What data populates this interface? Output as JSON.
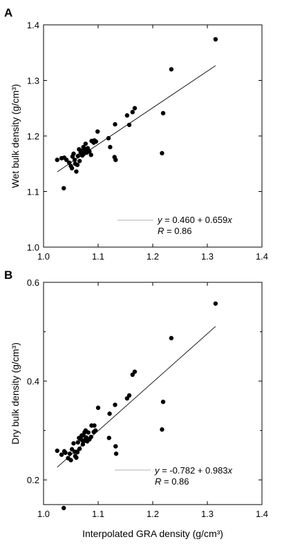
{
  "chart_data": [
    {
      "panel": "A",
      "type": "scatter",
      "xlabel": "",
      "ylabel": "Wet bulk density (g/cm³)",
      "xlim": [
        1.0,
        1.4
      ],
      "ylim": [
        1.0,
        1.4
      ],
      "xticks": [
        "1.0",
        "1.1",
        "1.2",
        "1.3",
        "1.4"
      ],
      "yticks": [
        "1.0",
        "1.1",
        "1.2",
        "1.3",
        "1.4"
      ],
      "xtick_values": [
        1.0,
        1.1,
        1.2,
        1.3,
        1.4
      ],
      "ytick_values": [
        1.0,
        1.1,
        1.2,
        1.3,
        1.4
      ],
      "equation": {
        "prefix": "y",
        "body": " = 0.460 + 0.659",
        "var": "x"
      },
      "r_text": {
        "var": "R",
        "body": " = 0.86"
      },
      "fit": {
        "intercept": 0.46,
        "slope": 0.659,
        "x_range": [
          1.025,
          1.315
        ]
      },
      "points": [
        [
          1.025,
          1.157
        ],
        [
          1.033,
          1.16
        ],
        [
          1.038,
          1.161
        ],
        [
          1.042,
          1.157
        ],
        [
          1.047,
          1.152
        ],
        [
          1.05,
          1.146
        ],
        [
          1.052,
          1.142
        ],
        [
          1.053,
          1.163
        ],
        [
          1.055,
          1.168
        ],
        [
          1.057,
          1.157
        ],
        [
          1.058,
          1.15
        ],
        [
          1.06,
          1.136
        ],
        [
          1.062,
          1.148
        ],
        [
          1.063,
          1.164
        ],
        [
          1.065,
          1.176
        ],
        [
          1.066,
          1.155
        ],
        [
          1.068,
          1.17
        ],
        [
          1.07,
          1.172
        ],
        [
          1.071,
          1.165
        ],
        [
          1.072,
          1.174
        ],
        [
          1.073,
          1.18
        ],
        [
          1.074,
          1.168
        ],
        [
          1.075,
          1.177
        ],
        [
          1.077,
          1.186
        ],
        [
          1.078,
          1.174
        ],
        [
          1.079,
          1.17
        ],
        [
          1.081,
          1.178
        ],
        [
          1.082,
          1.174
        ],
        [
          1.084,
          1.172
        ],
        [
          1.087,
          1.166
        ],
        [
          1.088,
          1.191
        ],
        [
          1.092,
          1.188
        ],
        [
          1.093,
          1.192
        ],
        [
          1.096,
          1.19
        ],
        [
          1.099,
          1.208
        ],
        [
          1.119,
          1.196
        ],
        [
          1.122,
          1.18
        ],
        [
          1.13,
          1.162
        ],
        [
          1.131,
          1.221
        ],
        [
          1.132,
          1.157
        ],
        [
          1.153,
          1.237
        ],
        [
          1.157,
          1.22
        ],
        [
          1.163,
          1.243
        ],
        [
          1.167,
          1.25
        ],
        [
          1.217,
          1.169
        ],
        [
          1.219,
          1.241
        ],
        [
          1.234,
          1.32
        ],
        [
          1.315,
          1.374
        ],
        [
          1.037,
          1.106
        ]
      ]
    },
    {
      "panel": "B",
      "type": "scatter",
      "xlabel": "Interpolated GRA density (g/cm³)",
      "ylabel": "Dry bulk density (g/cm³)",
      "xlim": [
        1.0,
        1.4
      ],
      "ylim": [
        0.15,
        0.6
      ],
      "xticks": [
        "1.0",
        "1.1",
        "1.2",
        "1.3",
        "1.4"
      ],
      "yticks": [
        "0.2",
        "0.4",
        "0.6"
      ],
      "xtick_values": [
        1.0,
        1.1,
        1.2,
        1.3,
        1.4
      ],
      "ytick_values": [
        0.2,
        0.4,
        0.6
      ],
      "ytick_minor_values": [
        0.3,
        0.5
      ],
      "equation": {
        "prefix": "y",
        "body": " = -0.782 + 0.983",
        "var": "x"
      },
      "r_text": {
        "var": "R",
        "body": " = 0.86"
      },
      "fit": {
        "intercept": -0.782,
        "slope": 0.983,
        "x_range": [
          1.025,
          1.315
        ]
      },
      "points": [
        [
          1.025,
          0.259
        ],
        [
          1.033,
          0.251
        ],
        [
          1.038,
          0.258
        ],
        [
          1.04,
          0.255
        ],
        [
          1.045,
          0.244
        ],
        [
          1.048,
          0.253
        ],
        [
          1.05,
          0.24
        ],
        [
          1.052,
          0.262
        ],
        [
          1.055,
          0.274
        ],
        [
          1.057,
          0.257
        ],
        [
          1.058,
          0.248
        ],
        [
          1.06,
          0.245
        ],
        [
          1.062,
          0.256
        ],
        [
          1.063,
          0.276
        ],
        [
          1.065,
          0.285
        ],
        [
          1.066,
          0.263
        ],
        [
          1.068,
          0.283
        ],
        [
          1.07,
          0.29
        ],
        [
          1.071,
          0.28
        ],
        [
          1.072,
          0.272
        ],
        [
          1.073,
          0.29
        ],
        [
          1.074,
          0.28
        ],
        [
          1.075,
          0.296
        ],
        [
          1.077,
          0.3
        ],
        [
          1.078,
          0.286
        ],
        [
          1.079,
          0.284
        ],
        [
          1.08,
          0.278
        ],
        [
          1.082,
          0.296
        ],
        [
          1.084,
          0.282
        ],
        [
          1.087,
          0.287
        ],
        [
          1.088,
          0.31
        ],
        [
          1.092,
          0.297
        ],
        [
          1.093,
          0.31
        ],
        [
          1.095,
          0.3
        ],
        [
          1.1,
          0.346
        ],
        [
          1.12,
          0.285
        ],
        [
          1.121,
          0.334
        ],
        [
          1.131,
          0.352
        ],
        [
          1.132,
          0.268
        ],
        [
          1.133,
          0.253
        ],
        [
          1.153,
          0.365
        ],
        [
          1.157,
          0.371
        ],
        [
          1.163,
          0.413
        ],
        [
          1.167,
          0.419
        ],
        [
          1.217,
          0.302
        ],
        [
          1.219,
          0.358
        ],
        [
          1.234,
          0.487
        ],
        [
          1.315,
          0.557
        ],
        [
          1.037,
          0.143
        ]
      ]
    }
  ]
}
